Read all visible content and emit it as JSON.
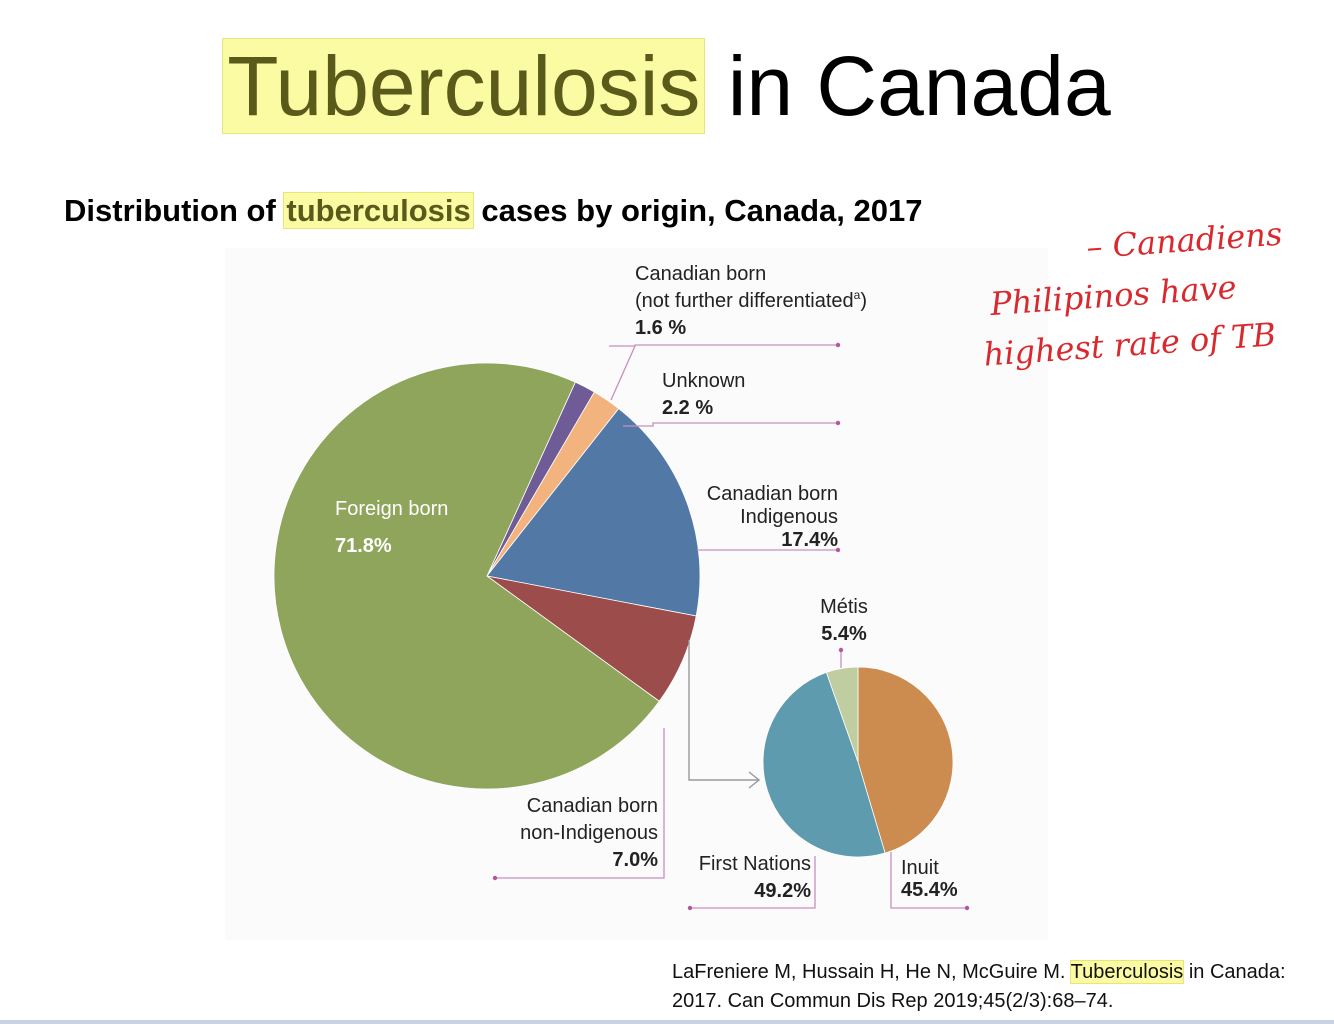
{
  "slide": {
    "title_highlight": "Tuberculosis",
    "title_rest": " in Canada",
    "subtitle_a": "Distribution of ",
    "subtitle_highlight": "tuberculosis",
    "subtitle_b": " cases by origin, Canada, 2017",
    "citation_a": "LaFreniere M, Hussain H, He N, McGuire M. ",
    "citation_highlight": "Tuberculosis",
    "citation_b": " in Canada: 2017. Can Commun Dis Rep 2019;45(2/3):68–74.",
    "handwritten_note": [
      "– Canadiens",
      "Philipinos have",
      "highest rate of TB"
    ],
    "handwritten_color": "#d8292f"
  },
  "chart_data": [
    {
      "type": "pie",
      "title": "Distribution of tuberculosis cases by origin, Canada, 2017",
      "slices": [
        {
          "label": "Foreign born",
          "value": 71.8,
          "display": "71.8%",
          "color": "#8fa55c"
        },
        {
          "label": "Canadian born (not further differentiatedᵃ)",
          "value": 1.6,
          "display": "1.6 %",
          "color": "#6f5b95"
        },
        {
          "label": "Unknown",
          "value": 2.2,
          "display": "2.2 %",
          "color": "#f2b37e"
        },
        {
          "label": "Canadian born Indigenous",
          "value": 17.4,
          "display": "17.4%",
          "color": "#5278a6"
        },
        {
          "label": "Canadian born non-Indigenous",
          "value": 7.0,
          "display": "7.0%",
          "color": "#9c4c4a"
        }
      ]
    },
    {
      "type": "pie",
      "title": "",
      "slices": [
        {
          "label": "Inuit",
          "value": 45.4,
          "display": "45.4%",
          "color": "#cc8b4f"
        },
        {
          "label": "First Nations",
          "value": 49.2,
          "display": "49.2%",
          "color": "#5f9bae"
        },
        {
          "label": "Métis",
          "value": 5.4,
          "display": "5.4%",
          "color": "#bfcda0"
        }
      ]
    }
  ],
  "labels": {
    "foreign_born": "Foreign born",
    "foreign_born_pct": "71.8%",
    "cb_nfd_1": "Canadian born",
    "cb_nfd_2": "(not further differentiated",
    "cb_nfd_sup": "a",
    "cb_nfd_3": ")",
    "cb_nfd_pct": "1.6 %",
    "unknown": "Unknown",
    "unknown_pct": "2.2 %",
    "cbi_1": "Canadian born",
    "cbi_2": "Indigenous",
    "cbi_pct": "17.4%",
    "cbni_1": "Canadian born",
    "cbni_2": "non-Indigenous",
    "cbni_pct": "7.0%",
    "metis": "Métis",
    "metis_pct": "5.4%",
    "first_nations": "First Nations",
    "first_nations_pct": "49.2%",
    "inuit": "Inuit",
    "inuit_pct": "45.4%"
  }
}
